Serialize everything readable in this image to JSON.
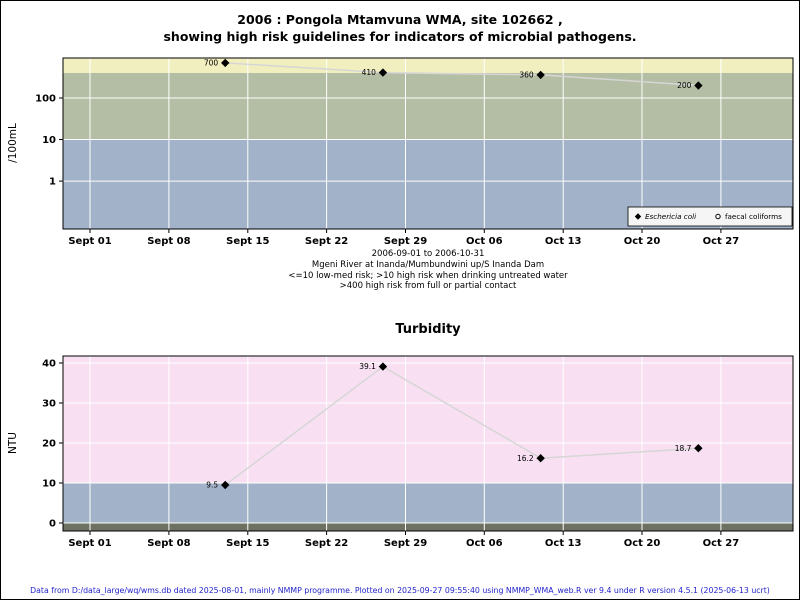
{
  "page": {
    "footer": "Data from D:/data_large/wq/wms.db dated 2025-08-01, mainly NMMP programme. Plotted on 2025-09-27 09:55:40 using NMMP_WMA_web.R ver 9.4 under R version 4.5.1 (2025-06-13 ucrt)",
    "footer_color": "#2424cc"
  },
  "chart_data": [
    {
      "type": "line",
      "title": "2006 : Pongola Mtamvuna WMA, site 102662 , showing high risk guidelines for indicators of microbial pathogens.",
      "title_lines": [
        "2006 : Pongola Mtamvuna WMA, site 102662 ,",
        "showing high risk guidelines for indicators of microbial pathogens."
      ],
      "ylabel": "/100mL",
      "yscale": "log",
      "ylim": [
        0.07,
        920
      ],
      "yticks": [
        1,
        10,
        100
      ],
      "ytick_labels": [
        "1",
        "10",
        "100"
      ],
      "x_origin_date": "2006-09-01",
      "xlim_days": [
        -2.4,
        62.4
      ],
      "xticks_days": [
        0,
        7,
        14,
        21,
        28,
        35,
        42,
        49,
        56
      ],
      "xtick_labels": [
        "Sept 01",
        "Sept 08",
        "Sept 15",
        "Sept 22",
        "Sept 29",
        "Oct 06",
        "Oct 13",
        "Oct 20",
        "Oct 27"
      ],
      "bands": [
        {
          "from": 400,
          "to": "top",
          "color": "#f1efbf",
          "meaning": ">400 high risk from full or partial contact"
        },
        {
          "from": 10,
          "to": 400,
          "color": "#b4bea4",
          "meaning": ">10 high risk when drinking untreated water"
        },
        {
          "from": "bottom",
          "to": 10,
          "color": "#a2b2c8",
          "meaning": "<=10 low-med risk"
        }
      ],
      "series": [
        {
          "name": "Eschericia coli",
          "marker": "diamond-filled",
          "x_days": [
            12,
            26,
            40,
            54
          ],
          "values": [
            700,
            410,
            360,
            200
          ],
          "point_labels": [
            "700",
            "410",
            "360",
            "200"
          ]
        },
        {
          "name": "faecal coliforms",
          "marker": "circle-open",
          "x_days": [],
          "values": [],
          "point_labels": []
        }
      ],
      "legend": {
        "items": [
          {
            "label": "Eschericia coli",
            "marker": "diamond-filled",
            "italic": true
          },
          {
            "label": "faecal coliforms",
            "marker": "circle-open",
            "italic": false
          }
        ]
      },
      "caption_lines": [
        "2006-09-01 to 2006-10-31",
        "Mgeni River at Inanda/Mumbundwini up/S Inanda Dam",
        "<=10 low-med risk; >10 high risk when drinking untreated water",
        ">400 high risk from full or partial contact"
      ],
      "colors": {
        "line": "#d6d6d6",
        "marker": "#000000",
        "gridline": "#ffffff"
      }
    },
    {
      "type": "line",
      "title": "Turbidity",
      "title_lines": [
        "Turbidity"
      ],
      "ylabel": "NTU",
      "yscale": "linear",
      "ylim": [
        -2,
        41.75
      ],
      "yticks": [
        0,
        10,
        20,
        30,
        40
      ],
      "ytick_labels": [
        "0",
        "10",
        "20",
        "30",
        "40"
      ],
      "x_origin_date": "2006-09-01",
      "xlim_days": [
        -2.4,
        62.4
      ],
      "xticks_days": [
        0,
        7,
        14,
        21,
        28,
        35,
        42,
        49,
        56
      ],
      "xtick_labels": [
        "Sept 01",
        "Sept 08",
        "Sept 15",
        "Sept 22",
        "Sept 29",
        "Oct 06",
        "Oct 13",
        "Oct 20",
        "Oct 27"
      ],
      "bands": [
        {
          "from": 10,
          "to": "top",
          "color": "#f8e0f2",
          "meaning": "above 10 NTU"
        },
        {
          "from": 0,
          "to": 10,
          "color": "#a2b2c8",
          "meaning": "0-10 NTU"
        },
        {
          "from": "bottom",
          "to": 0,
          "color": "#6d7162",
          "meaning": "below 0"
        }
      ],
      "series": [
        {
          "name": "Turbidity",
          "marker": "diamond-filled",
          "x_days": [
            12,
            26,
            40,
            54
          ],
          "values": [
            9.5,
            39.1,
            16.2,
            18.7
          ],
          "point_labels": [
            "9.5",
            "39.1",
            "16.2",
            "18.7"
          ]
        }
      ],
      "caption_lines": [],
      "colors": {
        "line": "#d6d6d6",
        "marker": "#000000",
        "gridline": "#ffffff"
      }
    }
  ]
}
